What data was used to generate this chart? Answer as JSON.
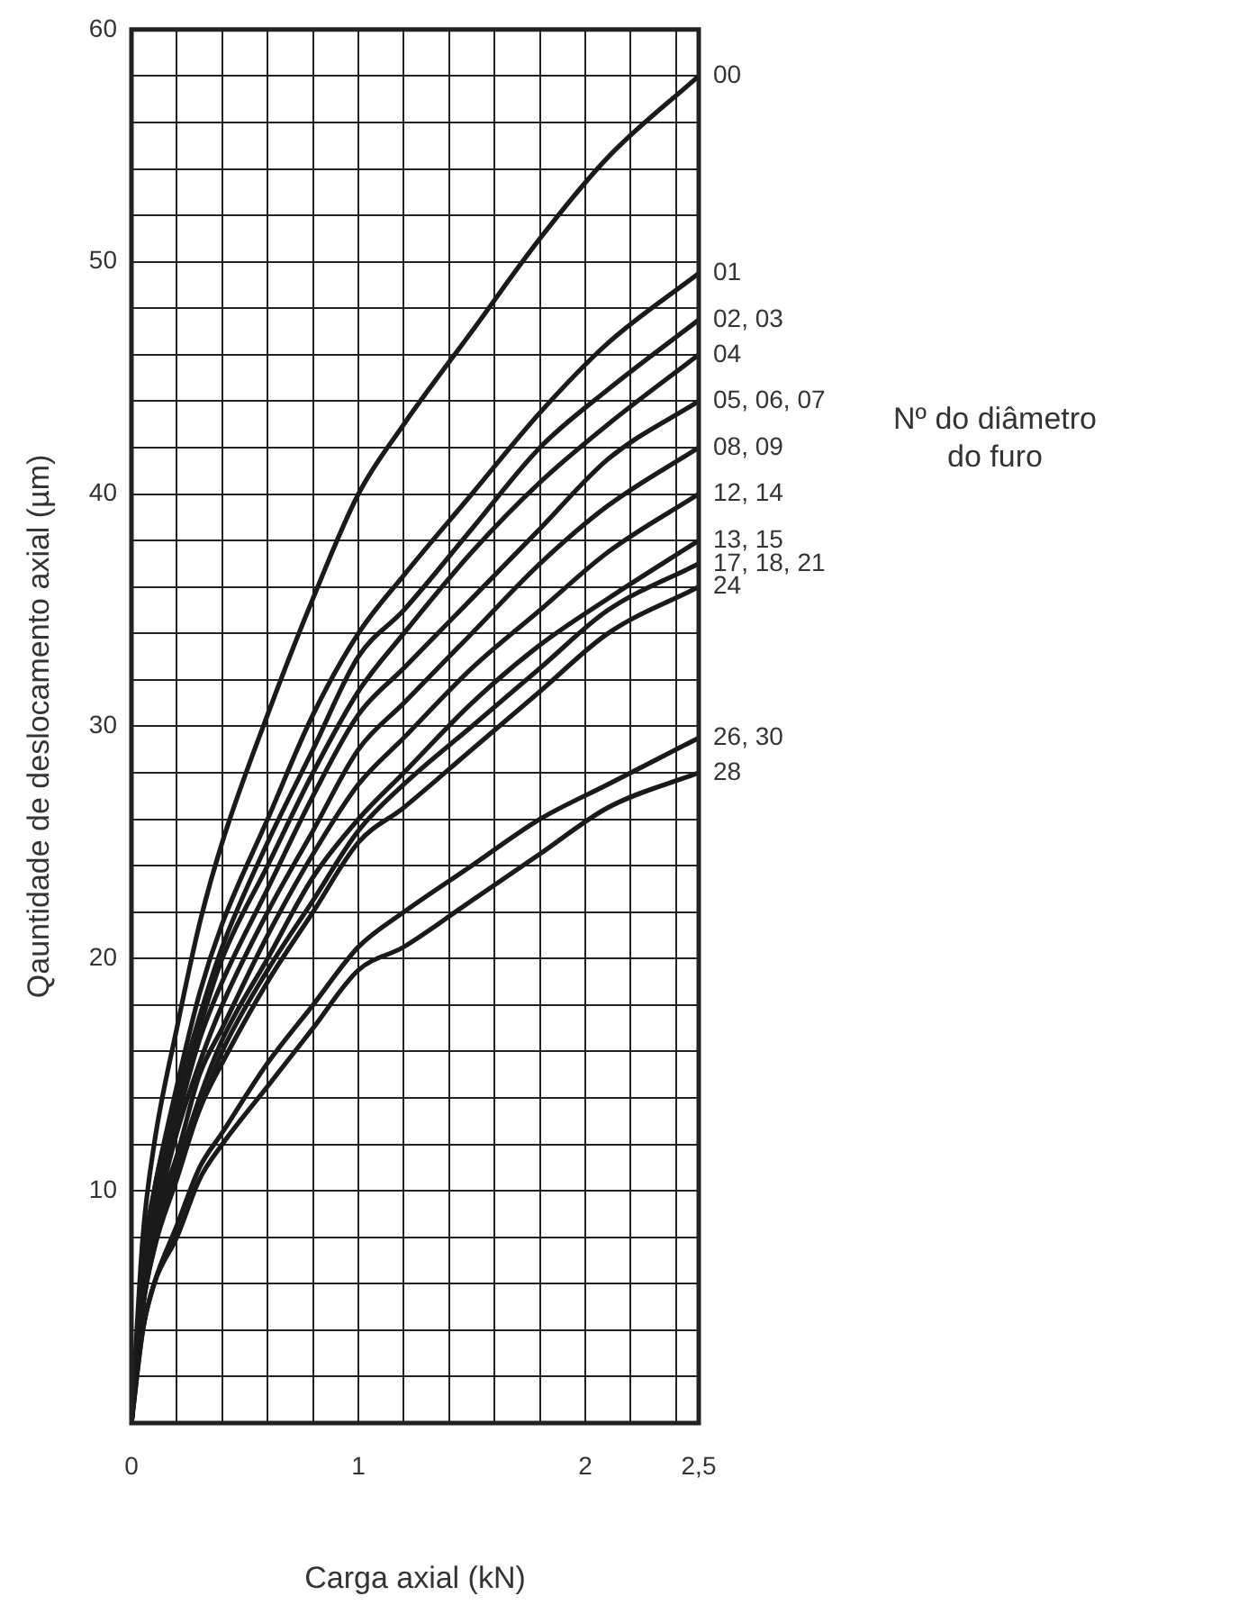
{
  "chart_data": {
    "type": "line",
    "xlabel": "Carga axial (kN)",
    "ylabel": "Qauntidade de deslocamento axial (µm)",
    "legend_title": "Nº do diâmetro do furo",
    "x": [
      0,
      0.05,
      0.1,
      0.2,
      0.3,
      0.4,
      0.6,
      0.8,
      1.0,
      1.2,
      1.5,
      1.8,
      2.1,
      2.5
    ],
    "xlim": [
      0,
      2.5
    ],
    "xticks": [
      0,
      {
        "value": 0.2,
        "label": null
      },
      {
        "value": 0.4,
        "label": null
      },
      {
        "value": 0.6,
        "label": null
      },
      {
        "value": 0.8,
        "label": null
      },
      1,
      {
        "value": 1.2,
        "label": null
      },
      {
        "value": 1.4,
        "label": null
      },
      {
        "value": 1.6,
        "label": null
      },
      {
        "value": 1.8,
        "label": null
      },
      2,
      {
        "value": 2.2,
        "label": null
      },
      {
        "value": 2.4,
        "label": null
      },
      {
        "value": 2.5,
        "label": "2,5"
      }
    ],
    "ylim": [
      0,
      60
    ],
    "yticks": [
      {
        "value": 0,
        "label": null
      },
      {
        "value": 2,
        "label": null
      },
      {
        "value": 4,
        "label": null
      },
      {
        "value": 6,
        "label": null
      },
      {
        "value": 8,
        "label": null
      },
      10,
      {
        "value": 12,
        "label": null
      },
      {
        "value": 14,
        "label": null
      },
      {
        "value": 16,
        "label": null
      },
      {
        "value": 18,
        "label": null
      },
      20,
      {
        "value": 22,
        "label": null
      },
      {
        "value": 24,
        "label": null
      },
      {
        "value": 26,
        "label": null
      },
      {
        "value": 28,
        "label": null
      },
      30,
      {
        "value": 32,
        "label": null
      },
      {
        "value": 34,
        "label": null
      },
      {
        "value": 36,
        "label": null
      },
      {
        "value": 38,
        "label": null
      },
      40,
      {
        "value": 42,
        "label": null
      },
      {
        "value": 44,
        "label": null
      },
      {
        "value": 46,
        "label": null
      },
      {
        "value": 48,
        "label": null
      },
      50,
      {
        "value": 52,
        "label": null
      },
      {
        "value": 54,
        "label": null
      },
      {
        "value": 56,
        "label": null
      },
      {
        "value": 58,
        "label": null
      },
      60
    ],
    "grid": true,
    "legend": false,
    "series": [
      {
        "name": "00",
        "color": "#1a1a1a",
        "values": [
          0,
          8,
          12,
          17,
          21.5,
          25,
          30.5,
          35.5,
          40,
          43,
          47,
          51,
          54.5,
          58
        ]
      },
      {
        "name": "01",
        "color": "#1a1a1a",
        "values": [
          0,
          7,
          10,
          14.5,
          18.5,
          21.5,
          26,
          30.5,
          34,
          36.5,
          40,
          43.5,
          46.5,
          49.5
        ]
      },
      {
        "name": "02, 03",
        "color": "#1a1a1a",
        "values": [
          0,
          6.5,
          10,
          14,
          17.5,
          20.5,
          25,
          29,
          33,
          35,
          38.5,
          42,
          44.5,
          47.5
        ]
      },
      {
        "name": "04",
        "color": "#1a1a1a",
        "values": [
          0,
          6.5,
          9.5,
          13.5,
          17,
          20,
          24,
          28,
          31.5,
          34,
          37.5,
          40.5,
          43,
          46
        ]
      },
      {
        "name": "05, 06, 07",
        "color": "#1a1a1a",
        "values": [
          0,
          6,
          9,
          13,
          16.5,
          19,
          23,
          27,
          30.5,
          32.5,
          35.5,
          38.5,
          41.5,
          44
        ]
      },
      {
        "name": "08, 09",
        "color": "#1a1a1a",
        "values": [
          0,
          6,
          8.5,
          12.5,
          15.5,
          18,
          22,
          25.5,
          29,
          31,
          34,
          37,
          39.5,
          42
        ]
      },
      {
        "name": "12, 14",
        "color": "#1a1a1a",
        "values": [
          0,
          5.5,
          8.5,
          11.5,
          15,
          17,
          21,
          24.5,
          27.5,
          29.5,
          32.5,
          35,
          37.5,
          40
        ]
      },
      {
        "name": "13, 15",
        "color": "#1a1a1a",
        "values": [
          0,
          5,
          8,
          11,
          14,
          16.5,
          20,
          23.5,
          26,
          28,
          31,
          33.5,
          35.5,
          38
        ]
      },
      {
        "name": "17, 18, 21",
        "color": "#1a1a1a",
        "values": [
          0,
          5,
          7.5,
          11,
          13.5,
          16,
          19.5,
          22.5,
          25.5,
          27.5,
          30,
          32.5,
          35,
          37
        ]
      },
      {
        "name": "24",
        "color": "#1a1a1a",
        "values": [
          0,
          5,
          7.5,
          10.5,
          13.5,
          15.5,
          19,
          22,
          25,
          26.5,
          29,
          31.5,
          34,
          36
        ]
      },
      {
        "name": "26, 30",
        "color": "#1a1a1a",
        "values": [
          0,
          4,
          6,
          8.5,
          11,
          12.5,
          15.5,
          18,
          20.5,
          22,
          24,
          26,
          27.5,
          29.5
        ]
      },
      {
        "name": "28",
        "color": "#1a1a1a",
        "values": [
          0,
          4,
          6,
          8,
          10.5,
          12,
          14.5,
          17,
          19.5,
          20.5,
          22.5,
          24.5,
          26.5,
          28
        ]
      }
    ]
  }
}
